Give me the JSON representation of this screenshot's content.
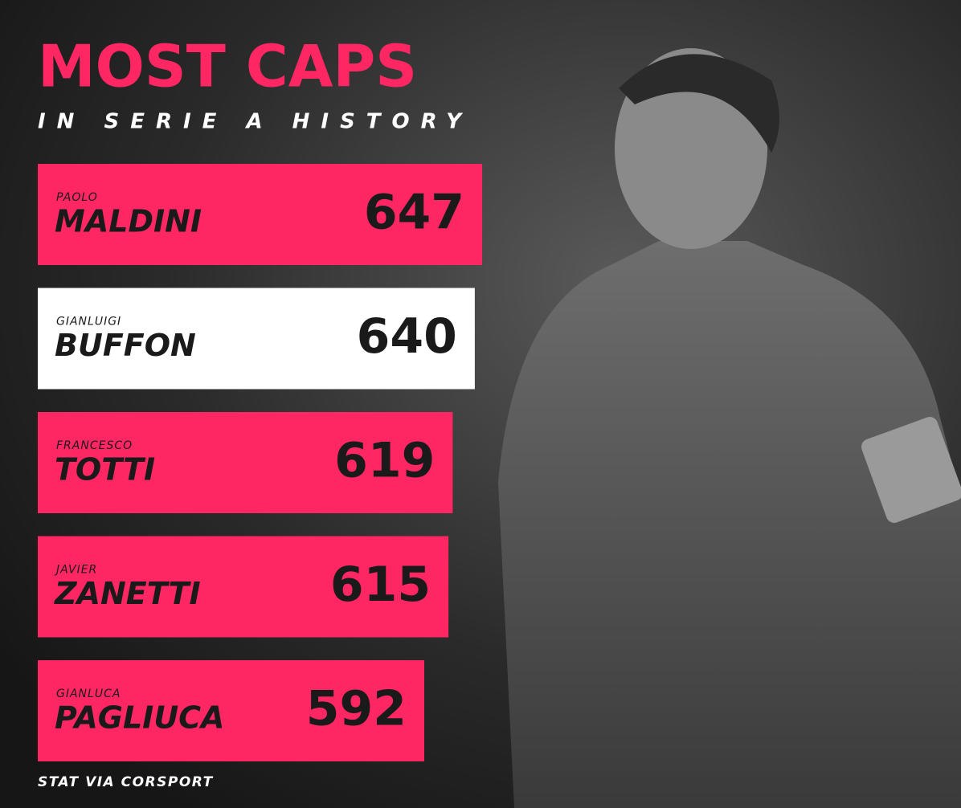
{
  "chart_data": {
    "type": "bar",
    "orientation": "horizontal",
    "title": "MOST CAPS",
    "subtitle": "IN SERIE A HISTORY",
    "footer": "STAT VIA CORSPORT",
    "first_names": [
      "PAOLO",
      "GIANLUIGI",
      "FRANCESCO",
      "JAVIER",
      "GIANLUCA"
    ],
    "categories": [
      "MALDINI",
      "BUFFON",
      "TOTTI",
      "ZANETTI",
      "PAGLIUCA"
    ],
    "values": [
      647,
      640,
      619,
      615,
      592
    ],
    "colors": [
      "#ff2763",
      "#ffffff",
      "#ff2763",
      "#ff2763",
      "#ff2763"
    ],
    "xlim": [
      225,
      650
    ]
  }
}
